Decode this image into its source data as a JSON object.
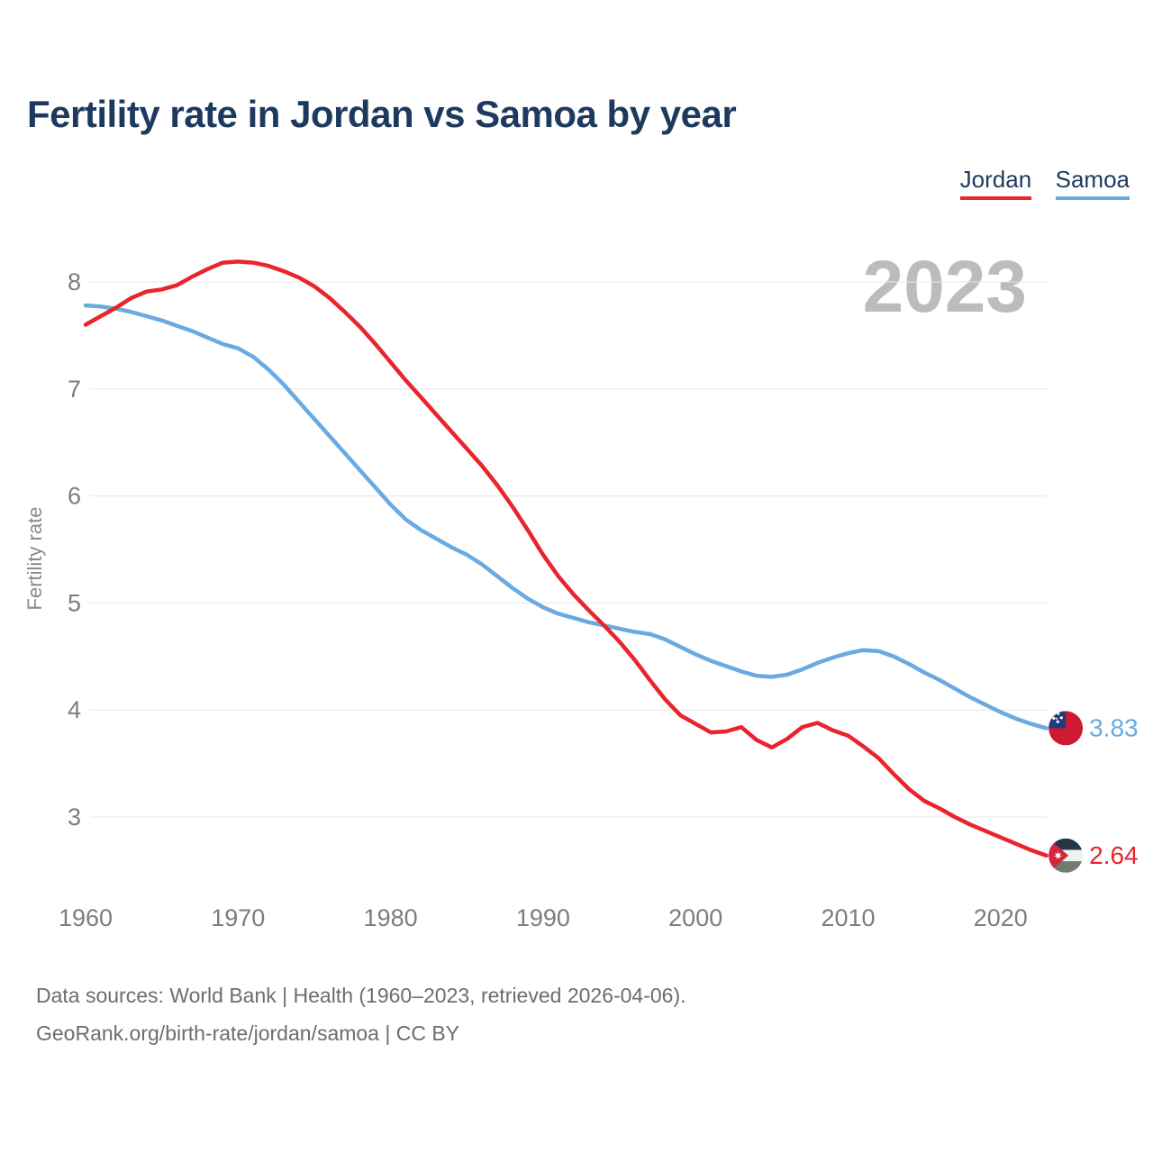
{
  "title": "Fertility rate in Jordan vs Samoa by year",
  "watermark": "2023",
  "footer": {
    "line1": "Data sources: World Bank | Health (1960–2023, retrieved 2026-04-06).",
    "line2": "GeoRank.org/birth-rate/jordan/samoa | CC BY"
  },
  "colors": {
    "title_navy": "#1d3a5e",
    "grid": "#e8e8e8",
    "tick_gray": "#7d7d7d",
    "watermark_gray": "#bcbcbc",
    "footer_gray": "#6d6d6d"
  },
  "chart_data": {
    "type": "line",
    "title": "Fertility rate in Jordan vs Samoa by year",
    "xlabel": "",
    "ylabel": "Fertility rate",
    "xlim": [
      1960,
      2023
    ],
    "ylim": [
      2.5,
      8.4
    ],
    "x_ticks": [
      1960,
      1970,
      1980,
      1990,
      2000,
      2010,
      2020
    ],
    "y_ticks": [
      3,
      4,
      5,
      6,
      7,
      8
    ],
    "grid": "horizontal-only",
    "legend_position": "top-right",
    "series": [
      {
        "name": "Jordan",
        "color": "#e9242c",
        "end_label": "2.64",
        "flag": "jordan",
        "values": [
          7.6,
          7.68,
          7.76,
          7.85,
          7.91,
          7.93,
          7.97,
          8.05,
          8.12,
          8.18,
          8.19,
          8.18,
          8.15,
          8.1,
          8.04,
          7.96,
          7.85,
          7.72,
          7.58,
          7.42,
          7.25,
          7.08,
          6.92,
          6.76,
          6.6,
          6.44,
          6.28,
          6.1,
          5.9,
          5.68,
          5.45,
          5.25,
          5.08,
          4.93,
          4.79,
          4.64,
          4.47,
          4.28,
          4.1,
          3.95,
          3.87,
          3.79,
          3.8,
          3.84,
          3.72,
          3.65,
          3.73,
          3.84,
          3.88,
          3.81,
          3.76,
          3.66,
          3.55,
          3.4,
          3.26,
          3.15,
          3.08,
          3.0,
          2.93,
          2.87,
          2.81,
          2.75,
          2.69,
          2.64
        ]
      },
      {
        "name": "Samoa",
        "color": "#6aaae1",
        "end_label": "3.83",
        "flag": "samoa",
        "values": [
          7.78,
          7.77,
          7.75,
          7.72,
          7.68,
          7.64,
          7.59,
          7.54,
          7.48,
          7.42,
          7.38,
          7.3,
          7.18,
          7.04,
          6.88,
          6.72,
          6.56,
          6.4,
          6.24,
          6.08,
          5.92,
          5.78,
          5.68,
          5.6,
          5.52,
          5.45,
          5.36,
          5.25,
          5.14,
          5.04,
          4.96,
          4.9,
          4.86,
          4.82,
          4.79,
          4.76,
          4.73,
          4.71,
          4.66,
          4.59,
          4.52,
          4.46,
          4.41,
          4.36,
          4.32,
          4.31,
          4.33,
          4.38,
          4.44,
          4.49,
          4.53,
          4.56,
          4.55,
          4.5,
          4.43,
          4.35,
          4.28,
          4.2,
          4.12,
          4.05,
          3.98,
          3.92,
          3.87,
          3.83
        ]
      }
    ]
  }
}
